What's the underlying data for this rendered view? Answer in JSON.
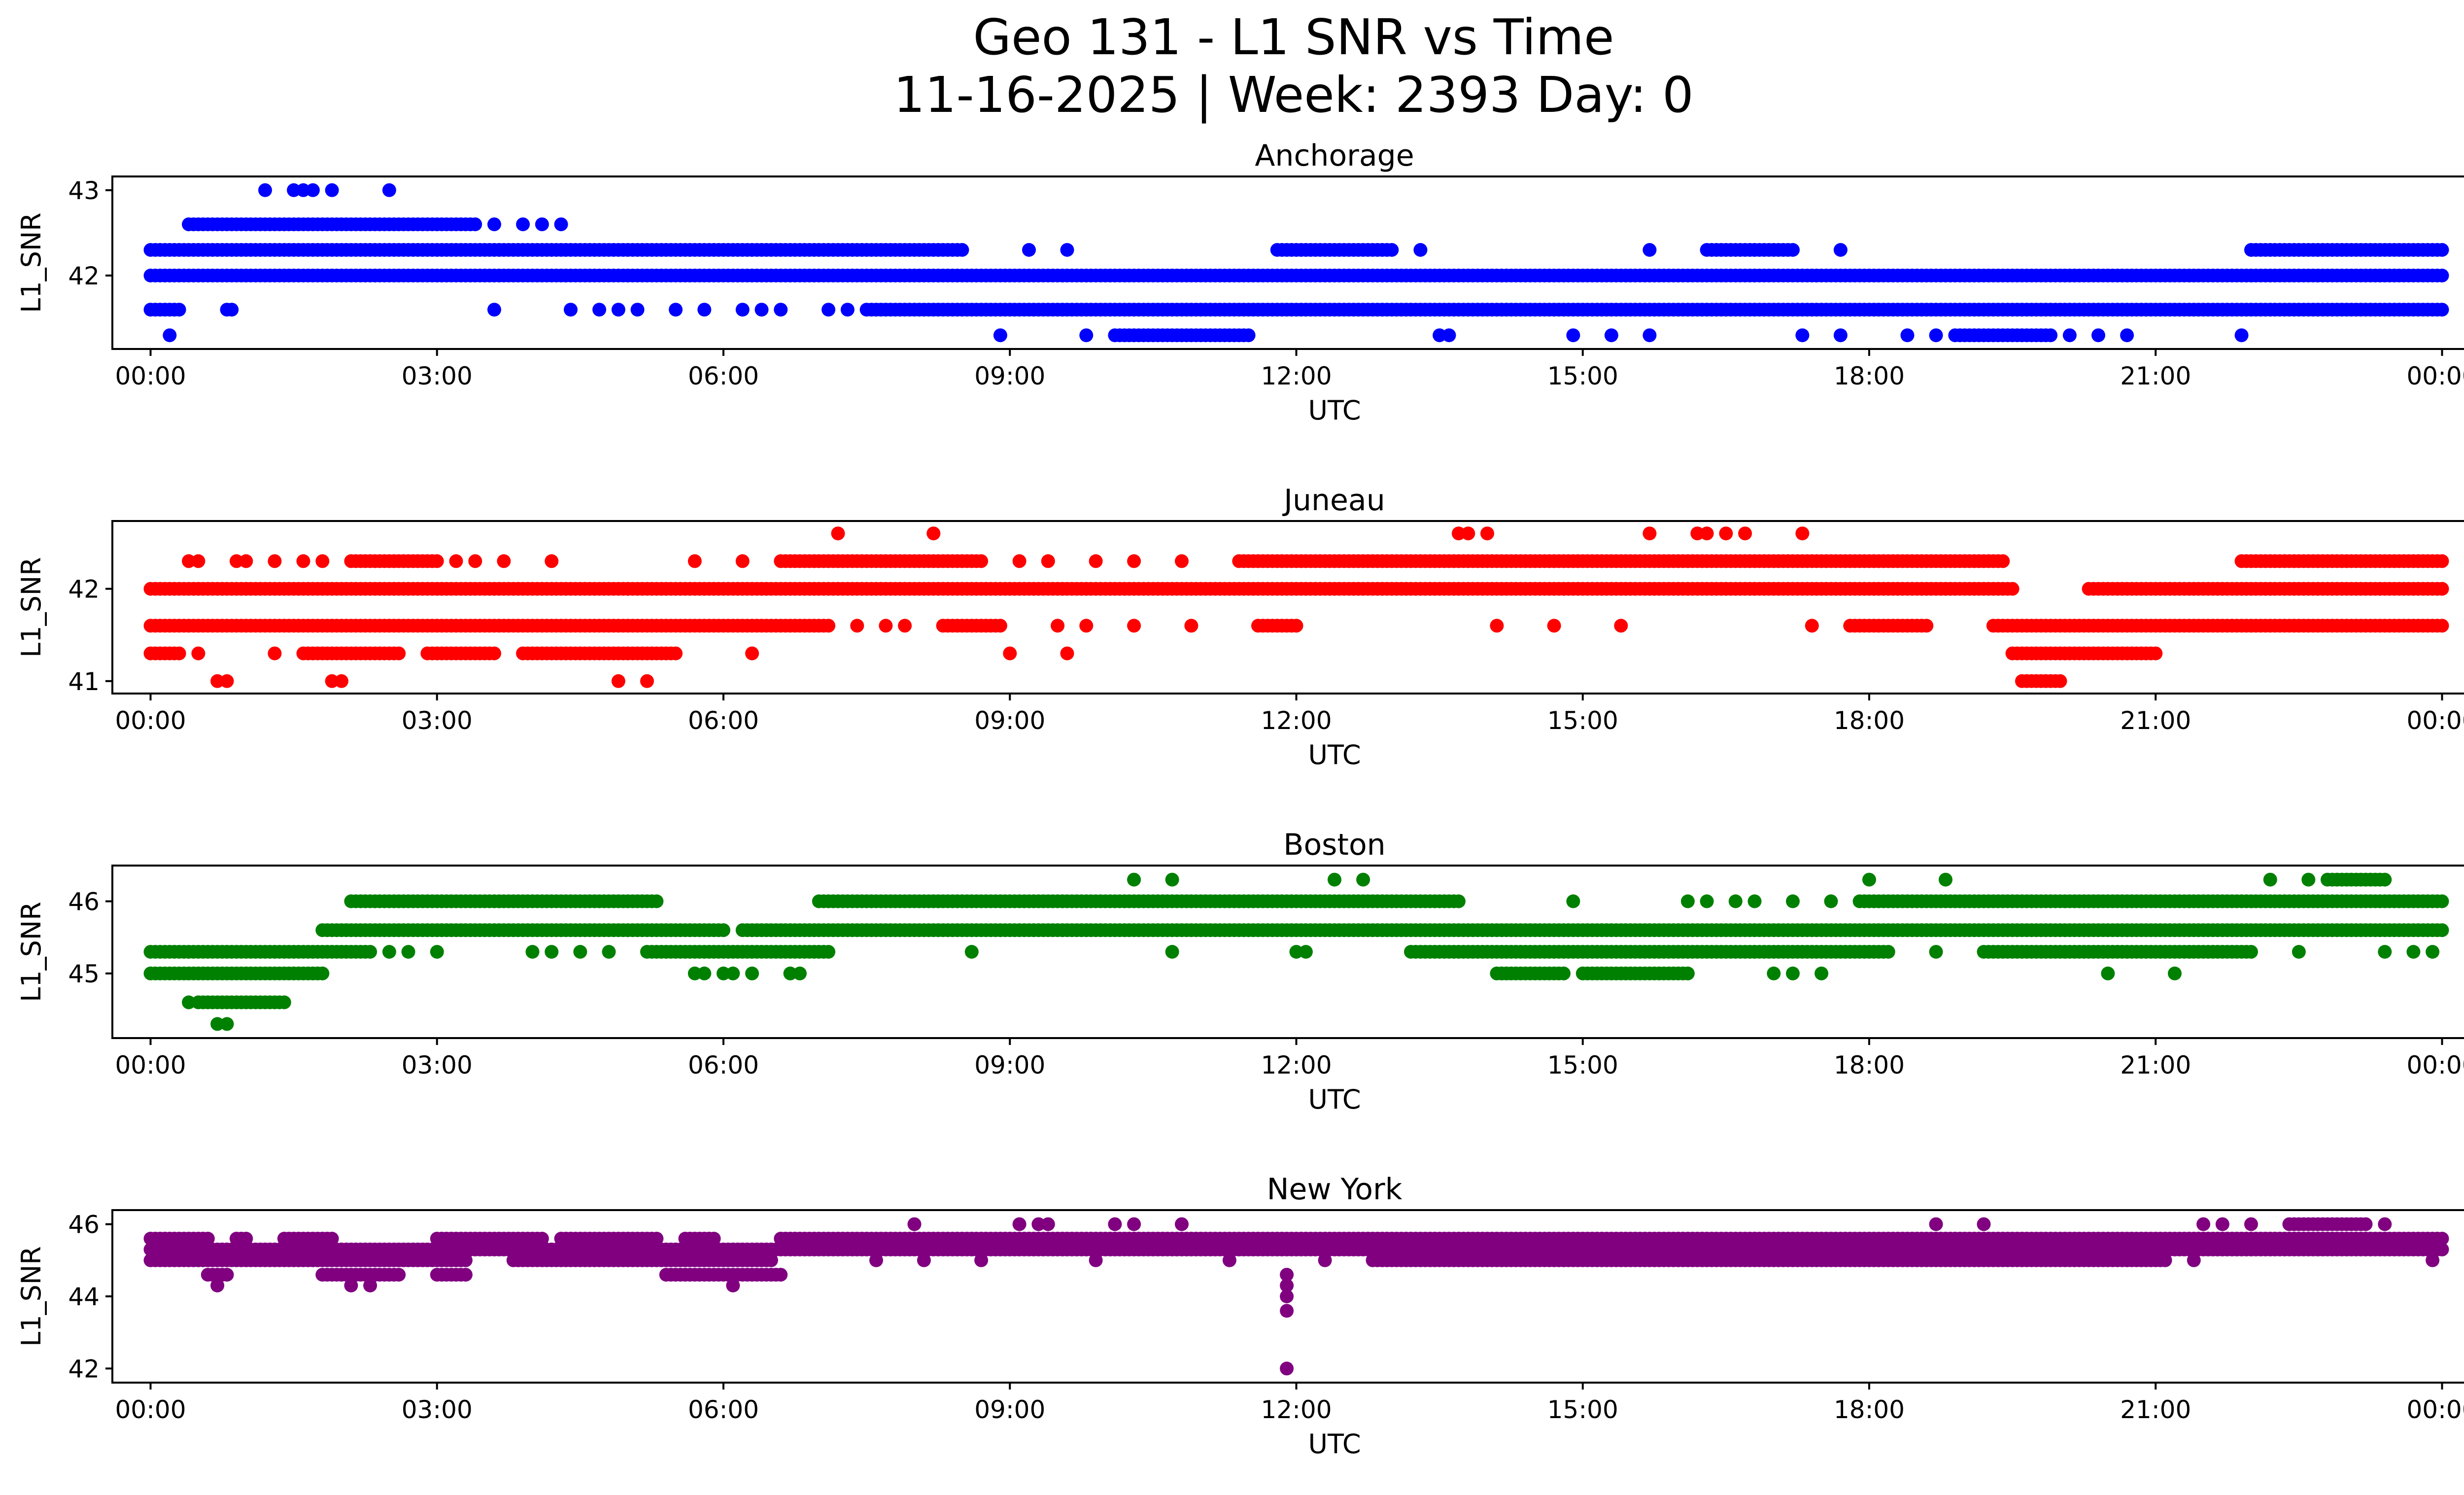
{
  "chart_data": {
    "type": "scatter",
    "title_line1": "Geo 131 - L1 SNR vs Time",
    "title_line2": "11-16-2025 | Week: 2393 Day: 0",
    "xlabel": "UTC",
    "ylabel": "L1_SNR",
    "x_unit": "hours UTC",
    "xlim": [
      -0.4,
      25.2
    ],
    "x_ticks": [
      0,
      3,
      6,
      9,
      12,
      15,
      18,
      21,
      24
    ],
    "x_tick_labels": [
      "00:00",
      "03:00",
      "06:00",
      "09:00",
      "12:00",
      "15:00",
      "18:00",
      "21:00",
      "00:00"
    ],
    "panels": [
      {
        "title": "Anchorage",
        "color": "#0000ff",
        "ylim": [
          41.22,
          43.08
        ],
        "y_ticks": [
          42,
          43
        ],
        "y_tick_labels": [
          "42",
          "43"
        ],
        "bands": [
          {
            "y": 42.0,
            "segments": [
              [
                0.0,
                24.0
              ]
            ]
          },
          {
            "y": 42.3,
            "segments": [
              [
                0.0,
                8.5
              ],
              [
                11.8,
                13.0
              ],
              [
                16.3,
                17.2
              ],
              [
                22.0,
                24.0
              ]
            ]
          },
          {
            "y": 41.6,
            "segments": [
              [
                0.0,
                0.3
              ],
              [
                0.8,
                0.85
              ],
              [
                7.5,
                24.0
              ]
            ]
          },
          {
            "y": 42.6,
            "segments": [
              [
                0.4,
                3.4
              ]
            ]
          },
          {
            "y": 41.3,
            "segments": [
              [
                10.1,
                11.5
              ],
              [
                18.9,
                19.9
              ]
            ]
          }
        ],
        "points": [
          {
            "x": 1.2,
            "y": 43.0
          },
          {
            "x": 1.5,
            "y": 43.0
          },
          {
            "x": 1.6,
            "y": 43.0
          },
          {
            "x": 1.7,
            "y": 43.0
          },
          {
            "x": 1.9,
            "y": 43.0
          },
          {
            "x": 2.5,
            "y": 43.0
          },
          {
            "x": 3.6,
            "y": 42.6
          },
          {
            "x": 3.9,
            "y": 42.6
          },
          {
            "x": 4.1,
            "y": 42.6
          },
          {
            "x": 4.3,
            "y": 42.6
          },
          {
            "x": 3.6,
            "y": 41.6
          },
          {
            "x": 4.4,
            "y": 41.6
          },
          {
            "x": 4.7,
            "y": 41.6
          },
          {
            "x": 4.9,
            "y": 41.6
          },
          {
            "x": 5.1,
            "y": 41.6
          },
          {
            "x": 5.5,
            "y": 41.6
          },
          {
            "x": 5.8,
            "y": 41.6
          },
          {
            "x": 6.2,
            "y": 41.6
          },
          {
            "x": 6.4,
            "y": 41.6
          },
          {
            "x": 6.6,
            "y": 41.6
          },
          {
            "x": 7.1,
            "y": 41.6
          },
          {
            "x": 7.3,
            "y": 41.6
          },
          {
            "x": 9.2,
            "y": 42.3
          },
          {
            "x": 9.6,
            "y": 42.3
          },
          {
            "x": 13.3,
            "y": 42.3
          },
          {
            "x": 15.7,
            "y": 42.3
          },
          {
            "x": 17.7,
            "y": 42.3
          },
          {
            "x": 0.2,
            "y": 41.3
          },
          {
            "x": 8.9,
            "y": 41.3
          },
          {
            "x": 9.8,
            "y": 41.3
          },
          {
            "x": 13.5,
            "y": 41.3
          },
          {
            "x": 13.6,
            "y": 41.3
          },
          {
            "x": 14.9,
            "y": 41.3
          },
          {
            "x": 15.3,
            "y": 41.3
          },
          {
            "x": 15.7,
            "y": 41.3
          },
          {
            "x": 17.3,
            "y": 41.3
          },
          {
            "x": 17.7,
            "y": 41.3
          },
          {
            "x": 18.4,
            "y": 41.3
          },
          {
            "x": 18.7,
            "y": 41.3
          },
          {
            "x": 20.1,
            "y": 41.3
          },
          {
            "x": 20.4,
            "y": 41.3
          },
          {
            "x": 20.7,
            "y": 41.3
          },
          {
            "x": 21.9,
            "y": 41.3
          }
        ]
      },
      {
        "title": "Juneau",
        "color": "#ff0000",
        "ylim": [
          40.94,
          42.66
        ],
        "y_ticks": [
          41,
          42
        ],
        "y_tick_labels": [
          "41",
          "42"
        ],
        "bands": [
          {
            "y": 42.0,
            "segments": [
              [
                0.0,
                19.5
              ],
              [
                20.3,
                24.0
              ]
            ]
          },
          {
            "y": 41.6,
            "segments": [
              [
                0.0,
                7.1
              ],
              [
                8.3,
                8.9
              ],
              [
                11.6,
                12.0
              ],
              [
                17.8,
                18.6
              ],
              [
                19.3,
                24.0
              ]
            ]
          },
          {
            "y": 42.3,
            "segments": [
              [
                2.1,
                3.0
              ],
              [
                6.6,
                8.7
              ],
              [
                11.4,
                19.4
              ],
              [
                21.9,
                24.0
              ]
            ]
          },
          {
            "y": 41.3,
            "segments": [
              [
                0.0,
                0.3
              ],
              [
                1.6,
                2.6
              ],
              [
                2.9,
                3.6
              ],
              [
                3.9,
                5.5
              ],
              [
                19.5,
                21.0
              ]
            ]
          },
          {
            "y": 41.0,
            "segments": [
              [
                19.6,
                20.0
              ]
            ]
          }
        ],
        "points": [
          {
            "x": 0.4,
            "y": 42.3
          },
          {
            "x": 0.5,
            "y": 42.3
          },
          {
            "x": 0.9,
            "y": 42.3
          },
          {
            "x": 1.0,
            "y": 42.3
          },
          {
            "x": 1.3,
            "y": 42.3
          },
          {
            "x": 1.6,
            "y": 42.3
          },
          {
            "x": 1.8,
            "y": 42.3
          },
          {
            "x": 3.2,
            "y": 42.3
          },
          {
            "x": 3.4,
            "y": 42.3
          },
          {
            "x": 3.7,
            "y": 42.3
          },
          {
            "x": 4.2,
            "y": 42.3
          },
          {
            "x": 5.7,
            "y": 42.3
          },
          {
            "x": 6.2,
            "y": 42.3
          },
          {
            "x": 9.1,
            "y": 42.3
          },
          {
            "x": 9.4,
            "y": 42.3
          },
          {
            "x": 9.9,
            "y": 42.3
          },
          {
            "x": 10.3,
            "y": 42.3
          },
          {
            "x": 10.8,
            "y": 42.3
          },
          {
            "x": 7.2,
            "y": 42.6
          },
          {
            "x": 8.2,
            "y": 42.6
          },
          {
            "x": 13.7,
            "y": 42.6
          },
          {
            "x": 13.8,
            "y": 42.6
          },
          {
            "x": 14.0,
            "y": 42.6
          },
          {
            "x": 15.7,
            "y": 42.6
          },
          {
            "x": 16.2,
            "y": 42.6
          },
          {
            "x": 16.3,
            "y": 42.6
          },
          {
            "x": 16.5,
            "y": 42.6
          },
          {
            "x": 16.7,
            "y": 42.6
          },
          {
            "x": 17.3,
            "y": 42.6
          },
          {
            "x": 7.4,
            "y": 41.6
          },
          {
            "x": 7.7,
            "y": 41.6
          },
          {
            "x": 7.9,
            "y": 41.6
          },
          {
            "x": 9.5,
            "y": 41.6
          },
          {
            "x": 9.8,
            "y": 41.6
          },
          {
            "x": 10.3,
            "y": 41.6
          },
          {
            "x": 10.9,
            "y": 41.6
          },
          {
            "x": 14.1,
            "y": 41.6
          },
          {
            "x": 14.7,
            "y": 41.6
          },
          {
            "x": 15.4,
            "y": 41.6
          },
          {
            "x": 17.4,
            "y": 41.6
          },
          {
            "x": 0.5,
            "y": 41.3
          },
          {
            "x": 1.3,
            "y": 41.3
          },
          {
            "x": 6.3,
            "y": 41.3
          },
          {
            "x": 9.0,
            "y": 41.3
          },
          {
            "x": 9.6,
            "y": 41.3
          },
          {
            "x": 0.7,
            "y": 41.0
          },
          {
            "x": 0.8,
            "y": 41.0
          },
          {
            "x": 1.9,
            "y": 41.0
          },
          {
            "x": 2.0,
            "y": 41.0
          },
          {
            "x": 4.9,
            "y": 41.0
          },
          {
            "x": 5.2,
            "y": 41.0
          }
        ]
      },
      {
        "title": "Boston",
        "color": "#008000",
        "ylim": [
          44.2,
          46.4
        ],
        "y_ticks": [
          45,
          46
        ],
        "y_tick_labels": [
          "45",
          "46"
        ],
        "bands": [
          {
            "y": 45.6,
            "segments": [
              [
                1.8,
                6.0
              ],
              [
                6.2,
                24.0
              ]
            ]
          },
          {
            "y": 46.0,
            "segments": [
              [
                2.1,
                5.3
              ],
              [
                7.0,
                13.7
              ],
              [
                17.9,
                24.0
              ]
            ]
          },
          {
            "y": 45.3,
            "segments": [
              [
                0.0,
                2.3
              ],
              [
                5.2,
                7.1
              ],
              [
                13.2,
                18.2
              ],
              [
                19.2,
                22.0
              ]
            ]
          },
          {
            "y": 45.0,
            "segments": [
              [
                0.0,
                1.8
              ],
              [
                14.1,
                14.8
              ],
              [
                15.0,
                16.1
              ]
            ]
          },
          {
            "y": 44.6,
            "segments": [
              [
                0.5,
                1.4
              ]
            ]
          },
          {
            "y": 46.3,
            "segments": [
              [
                22.8,
                23.4
              ]
            ]
          }
        ],
        "points": [
          {
            "x": 0.4,
            "y": 44.6
          },
          {
            "x": 0.7,
            "y": 44.3
          },
          {
            "x": 0.8,
            "y": 44.3
          },
          {
            "x": 10.3,
            "y": 46.3
          },
          {
            "x": 10.7,
            "y": 46.3
          },
          {
            "x": 12.4,
            "y": 46.3
          },
          {
            "x": 12.7,
            "y": 46.3
          },
          {
            "x": 18.0,
            "y": 46.3
          },
          {
            "x": 18.8,
            "y": 46.3
          },
          {
            "x": 22.2,
            "y": 46.3
          },
          {
            "x": 22.6,
            "y": 46.3
          },
          {
            "x": 5.7,
            "y": 45.0
          },
          {
            "x": 5.8,
            "y": 45.0
          },
          {
            "x": 6.0,
            "y": 45.0
          },
          {
            "x": 6.1,
            "y": 45.0
          },
          {
            "x": 6.3,
            "y": 45.0
          },
          {
            "x": 6.7,
            "y": 45.0
          },
          {
            "x": 6.8,
            "y": 45.0
          },
          {
            "x": 17.0,
            "y": 45.0
          },
          {
            "x": 17.2,
            "y": 45.0
          },
          {
            "x": 17.5,
            "y": 45.0
          },
          {
            "x": 20.5,
            "y": 45.0
          },
          {
            "x": 21.2,
            "y": 45.0
          },
          {
            "x": 2.5,
            "y": 45.3
          },
          {
            "x": 2.7,
            "y": 45.3
          },
          {
            "x": 3.0,
            "y": 45.3
          },
          {
            "x": 4.0,
            "y": 45.3
          },
          {
            "x": 4.2,
            "y": 45.3
          },
          {
            "x": 4.5,
            "y": 45.3
          },
          {
            "x": 4.8,
            "y": 45.3
          },
          {
            "x": 8.6,
            "y": 45.3
          },
          {
            "x": 10.7,
            "y": 45.3
          },
          {
            "x": 12.0,
            "y": 45.3
          },
          {
            "x": 12.1,
            "y": 45.3
          },
          {
            "x": 18.7,
            "y": 45.3
          },
          {
            "x": 22.5,
            "y": 45.3
          },
          {
            "x": 23.4,
            "y": 45.3
          },
          {
            "x": 23.7,
            "y": 45.3
          },
          {
            "x": 23.9,
            "y": 45.3
          },
          {
            "x": 14.9,
            "y": 46.0
          },
          {
            "x": 16.1,
            "y": 46.0
          },
          {
            "x": 16.3,
            "y": 46.0
          },
          {
            "x": 16.6,
            "y": 46.0
          },
          {
            "x": 16.8,
            "y": 46.0
          },
          {
            "x": 17.2,
            "y": 46.0
          },
          {
            "x": 17.6,
            "y": 46.0
          }
        ]
      },
      {
        "title": "New York",
        "color": "#800080",
        "ylim": [
          41.8,
          46.2
        ],
        "y_ticks": [
          42,
          44,
          46
        ],
        "y_tick_labels": [
          "42",
          "44",
          "46"
        ],
        "bands": [
          {
            "y": 45.6,
            "segments": [
              [
                0.0,
                0.6
              ],
              [
                0.9,
                1.0
              ],
              [
                1.4,
                1.9
              ],
              [
                3.0,
                4.1
              ],
              [
                4.3,
                5.3
              ],
              [
                5.6,
                5.9
              ],
              [
                6.6,
                24.0
              ]
            ]
          },
          {
            "y": 45.3,
            "segments": [
              [
                0.0,
                24.0
              ]
            ]
          },
          {
            "y": 45.0,
            "segments": [
              [
                0.0,
                3.3
              ],
              [
                3.8,
                6.5
              ],
              [
                12.8,
                21.1
              ]
            ]
          },
          {
            "y": 44.6,
            "segments": [
              [
                0.6,
                0.8
              ],
              [
                1.8,
                2.6
              ],
              [
                3.0,
                3.3
              ],
              [
                5.4,
                6.6
              ]
            ]
          },
          {
            "y": 46.0,
            "segments": [
              [
                22.4,
                23.2
              ]
            ]
          }
        ],
        "points": [
          {
            "x": 0.7,
            "y": 44.3
          },
          {
            "x": 2.1,
            "y": 44.3
          },
          {
            "x": 2.3,
            "y": 44.3
          },
          {
            "x": 6.1,
            "y": 44.3
          },
          {
            "x": 11.9,
            "y": 44.6
          },
          {
            "x": 11.9,
            "y": 44.3
          },
          {
            "x": 11.9,
            "y": 44.0
          },
          {
            "x": 11.9,
            "y": 43.6
          },
          {
            "x": 11.9,
            "y": 42.0
          },
          {
            "x": 8.0,
            "y": 46.0
          },
          {
            "x": 9.1,
            "y": 46.0
          },
          {
            "x": 9.3,
            "y": 46.0
          },
          {
            "x": 9.4,
            "y": 46.0
          },
          {
            "x": 10.1,
            "y": 46.0
          },
          {
            "x": 10.3,
            "y": 46.0
          },
          {
            "x": 10.8,
            "y": 46.0
          },
          {
            "x": 18.7,
            "y": 46.0
          },
          {
            "x": 19.2,
            "y": 46.0
          },
          {
            "x": 21.5,
            "y": 46.0
          },
          {
            "x": 21.7,
            "y": 46.0
          },
          {
            "x": 22.0,
            "y": 46.0
          },
          {
            "x": 23.4,
            "y": 46.0
          },
          {
            "x": 7.6,
            "y": 45.0
          },
          {
            "x": 8.1,
            "y": 45.0
          },
          {
            "x": 8.7,
            "y": 45.0
          },
          {
            "x": 9.9,
            "y": 45.0
          },
          {
            "x": 11.3,
            "y": 45.0
          },
          {
            "x": 12.3,
            "y": 45.0
          },
          {
            "x": 21.4,
            "y": 45.0
          },
          {
            "x": 23.9,
            "y": 45.0
          }
        ]
      }
    ]
  }
}
